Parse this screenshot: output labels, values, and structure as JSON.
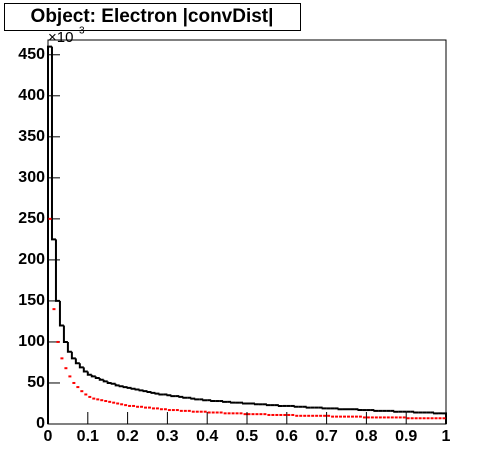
{
  "chart_data": {
    "type": "histogram",
    "title": "Object: Electron |convDist|",
    "y_multiplier": {
      "base": "×10",
      "exponent": "3"
    },
    "bins": [
      0,
      0.01,
      0.02,
      0.03,
      0.04,
      0.05,
      0.06,
      0.07,
      0.08,
      0.09,
      0.1,
      0.11,
      0.12,
      0.13,
      0.14,
      0.15,
      0.16,
      0.17,
      0.18,
      0.19,
      0.2,
      0.21,
      0.22,
      0.23,
      0.24,
      0.25,
      0.26,
      0.27,
      0.28,
      0.29,
      0.3,
      0.31,
      0.32,
      0.33,
      0.34,
      0.35,
      0.36,
      0.37,
      0.38,
      0.39,
      0.4,
      0.41,
      0.42,
      0.43,
      0.44,
      0.45,
      0.46,
      0.47,
      0.48,
      0.49,
      0.5,
      0.51,
      0.52,
      0.53,
      0.54,
      0.55,
      0.56,
      0.57,
      0.58,
      0.59,
      0.6,
      0.61,
      0.62,
      0.63,
      0.64,
      0.65,
      0.66,
      0.67,
      0.68,
      0.69,
      0.7,
      0.71,
      0.72,
      0.73,
      0.74,
      0.75,
      0.76,
      0.77,
      0.78,
      0.79,
      0.8,
      0.81,
      0.82,
      0.83,
      0.84,
      0.85,
      0.86,
      0.87,
      0.88,
      0.89,
      0.9,
      0.91,
      0.92,
      0.93,
      0.94,
      0.95,
      0.96,
      0.97,
      0.98,
      0.99,
      1
    ],
    "series": [
      {
        "color": "#000000",
        "draw": "step",
        "values": [
          460,
          225,
          150,
          120,
          100,
          88,
          80,
          74,
          69,
          64,
          60,
          58,
          56,
          54,
          52,
          50,
          49,
          47,
          46,
          45,
          44,
          43,
          42,
          41,
          40,
          39,
          38,
          37,
          36,
          36,
          35,
          34,
          34,
          33,
          32,
          32,
          31,
          30,
          30,
          29,
          29,
          28,
          28,
          28,
          27,
          27,
          26,
          26,
          26,
          25,
          25,
          25,
          24,
          24,
          24,
          23,
          23,
          23,
          22,
          22,
          22,
          22,
          21,
          21,
          21,
          20,
          20,
          20,
          20,
          19,
          19,
          19,
          19,
          18,
          18,
          18,
          18,
          18,
          17,
          17,
          17,
          17,
          16,
          16,
          16,
          16,
          16,
          15,
          15,
          15,
          15,
          15,
          14,
          14,
          14,
          14,
          14,
          13,
          13,
          13
        ]
      },
      {
        "color": "#ff0000",
        "draw": "points",
        "values": [
          250,
          140,
          100,
          80,
          68,
          58,
          50,
          45,
          40,
          36,
          33,
          31,
          30,
          29,
          28,
          27,
          26,
          25,
          24,
          23,
          22,
          22,
          21,
          21,
          20,
          20,
          19,
          19,
          18,
          18,
          17,
          17,
          17,
          16,
          16,
          16,
          15,
          15,
          15,
          15,
          14,
          14,
          14,
          14,
          13,
          13,
          13,
          13,
          13,
          12,
          12,
          12,
          12,
          12,
          12,
          11,
          11,
          11,
          11,
          11,
          11,
          11,
          10,
          10,
          10,
          10,
          10,
          10,
          10,
          10,
          10,
          9,
          9,
          9,
          9,
          9,
          9,
          9,
          9,
          8,
          8,
          8,
          8,
          8,
          8,
          8,
          8,
          8,
          8,
          8,
          7,
          7,
          7,
          7,
          7,
          7,
          7,
          7,
          7,
          7
        ]
      }
    ],
    "xlim": [
      0,
      1
    ],
    "xticks": [
      0,
      0.1,
      0.2,
      0.3,
      0.4,
      0.5,
      0.6,
      0.7,
      0.8,
      0.9,
      1
    ],
    "ylim": [
      0,
      468
    ],
    "yticks": [
      0,
      50,
      100,
      150,
      200,
      250,
      300,
      350,
      400,
      450
    ]
  }
}
